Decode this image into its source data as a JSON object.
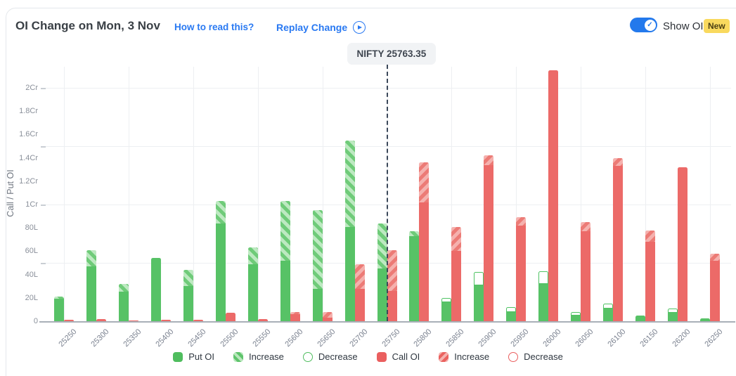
{
  "header": {
    "title": "OI Change on Mon, 3 Nov",
    "how_to_read": "How to read this?",
    "replay": "Replay Change",
    "show_oi": "Show OI",
    "new_badge": "New",
    "toggle_state": "on"
  },
  "chart_data": {
    "type": "bar",
    "title": "OI Change on Mon, 3 Nov",
    "ylabel": "Call / Put OI",
    "unit_note": "values in lakh (L); 1Cr = 100L",
    "ylim": [
      0,
      220
    ],
    "yticks": [
      {
        "v": 0,
        "label": "0"
      },
      {
        "v": 20,
        "label": "20L"
      },
      {
        "v": 40,
        "label": "40L"
      },
      {
        "v": 60,
        "label": "60L"
      },
      {
        "v": 80,
        "label": "80L"
      },
      {
        "v": 100,
        "label": "1Cr"
      },
      {
        "v": 120,
        "label": "1.2Cr"
      },
      {
        "v": 140,
        "label": "1.4Cr"
      },
      {
        "v": 160,
        "label": "1.6Cr"
      },
      {
        "v": 180,
        "label": "1.8Cr"
      },
      {
        "v": 200,
        "label": "2Cr"
      }
    ],
    "gridline_values": [
      50,
      100,
      150,
      200
    ],
    "categories": [
      "25250",
      "25300",
      "25350",
      "25400",
      "25450",
      "25500",
      "25550",
      "25600",
      "25650",
      "25700",
      "25750",
      "25800",
      "25850",
      "25900",
      "25950",
      "26000",
      "26050",
      "26100",
      "26150",
      "26200",
      "26250"
    ],
    "series": [
      {
        "name": "Put OI",
        "role": "put",
        "solid": [
          19,
          47,
          25,
          54,
          30,
          84,
          49,
          52,
          28,
          81,
          45,
          73,
          16,
          31,
          8,
          32,
          5,
          11,
          5,
          7,
          2.5
        ],
        "increase": [
          2,
          14,
          7,
          0,
          14,
          19,
          14,
          51,
          67,
          74,
          39,
          4,
          0,
          0,
          0,
          0,
          0,
          0,
          0,
          0,
          0
        ],
        "decrease": [
          0,
          0,
          0,
          0,
          0,
          0,
          0,
          0,
          0,
          0,
          0,
          0,
          4,
          11,
          4,
          11,
          3,
          4,
          0,
          4,
          0
        ]
      },
      {
        "name": "Call OI",
        "role": "call",
        "solid": [
          1,
          2,
          0.5,
          1.5,
          1,
          7,
          2,
          6,
          3,
          28,
          26,
          102,
          60,
          134,
          82,
          215,
          77,
          133,
          68,
          132,
          52
        ],
        "increase": [
          0,
          0,
          0,
          0,
          0,
          0,
          0,
          2,
          5,
          21,
          35,
          34,
          21,
          8,
          7,
          0,
          8,
          7,
          10,
          0,
          6
        ],
        "decrease": [
          0,
          0,
          0,
          0,
          0,
          0,
          0,
          0,
          0,
          0,
          0,
          0,
          0,
          0,
          0,
          0,
          0,
          0,
          0,
          0,
          0
        ]
      }
    ],
    "nifty_line": {
      "label": "NIFTY 25763.35",
      "value": 25763.35,
      "between": [
        "25750",
        "25800"
      ]
    },
    "legend": [
      {
        "label": "Put OI",
        "swatch": "solid-green"
      },
      {
        "label": "Increase",
        "swatch": "hatch-green"
      },
      {
        "label": "Decrease",
        "swatch": "outline-green"
      },
      {
        "label": "Call OI",
        "swatch": "solid-red"
      },
      {
        "label": "Increase",
        "swatch": "hatch-red"
      },
      {
        "label": "Decrease",
        "swatch": "outline-red"
      }
    ],
    "legend_position": "bottom"
  },
  "colors": {
    "put_solid": "#57c266",
    "put_hatch_light": "#bde9c1",
    "put_hatch_stripe": "#6fcb79",
    "call_solid": "#ec6a68",
    "call_hatch_light": "#f5b1ae",
    "call_hatch_stripe": "#ec7b76",
    "link_blue": "#2979f2",
    "toggle_blue": "#2379ec",
    "badge_yellow": "#f9d95e",
    "nifty_line_navy": "#3b485a"
  }
}
